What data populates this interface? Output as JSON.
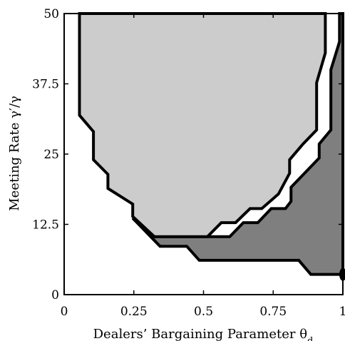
{
  "chart_data": {
    "type": "area",
    "title": "",
    "xlabel": "Dealers’ Bargaining Parameter θ",
    "xlabel_subscript": "d",
    "ylabel": "Meeting Rate γ′/γ",
    "xlim": [
      0,
      1
    ],
    "ylim": [
      0,
      50
    ],
    "x_ticks": [
      0,
      0.25,
      0.5,
      0.75,
      1
    ],
    "x_tick_labels": [
      "0",
      "0.25",
      "0.5",
      "0.75",
      "1"
    ],
    "y_ticks": [
      0,
      12.5,
      25,
      37.5,
      50
    ],
    "y_tick_labels": [
      "0",
      "12.5",
      "25",
      "37.5",
      "50"
    ],
    "grid": false,
    "legend": "none",
    "series": [
      {
        "fill": "#7f7f7f",
        "points": [
          [
            0.246,
            13.6
          ],
          [
            0.344,
            8.6
          ],
          [
            0.44,
            8.6
          ],
          [
            0.485,
            6.1
          ],
          [
            0.842,
            6.1
          ],
          [
            0.885,
            3.6
          ],
          [
            1.0,
            3.6
          ],
          [
            1.0,
            50
          ],
          [
            0.988,
            50
          ],
          [
            0.988,
            45.0
          ],
          [
            0.957,
            40.0
          ],
          [
            0.957,
            29.3
          ],
          [
            0.915,
            26.8
          ],
          [
            0.915,
            24.3
          ],
          [
            0.814,
            19.1
          ],
          [
            0.814,
            16.6
          ],
          [
            0.794,
            15.3
          ],
          [
            0.743,
            15.3
          ],
          [
            0.695,
            12.8
          ],
          [
            0.643,
            12.8
          ],
          [
            0.594,
            10.3
          ],
          [
            0.544,
            10.3
          ],
          [
            0.324,
            10.3
          ],
          [
            0.284,
            12.8
          ],
          [
            0.246,
            13.6
          ]
        ]
      },
      {
        "fill": "#cccccc",
        "points": [
          [
            0.055,
            50
          ],
          [
            0.937,
            50
          ],
          [
            0.937,
            43.0
          ],
          [
            0.906,
            37.7
          ],
          [
            0.906,
            29.3
          ],
          [
            0.857,
            26.8
          ],
          [
            0.809,
            24.0
          ],
          [
            0.809,
            21.6
          ],
          [
            0.769,
            17.9
          ],
          [
            0.709,
            15.3
          ],
          [
            0.667,
            15.3
          ],
          [
            0.615,
            12.8
          ],
          [
            0.564,
            12.8
          ],
          [
            0.514,
            10.3
          ],
          [
            0.435,
            10.3
          ],
          [
            0.324,
            10.3
          ],
          [
            0.246,
            13.9
          ],
          [
            0.246,
            16.1
          ],
          [
            0.157,
            18.9
          ],
          [
            0.157,
            21.4
          ],
          [
            0.105,
            24.0
          ],
          [
            0.105,
            29.0
          ],
          [
            0.055,
            31.9
          ],
          [
            0.055,
            50
          ]
        ]
      }
    ],
    "marker": {
      "x": 1.0,
      "y": 3.6,
      "color": "#000000"
    }
  }
}
